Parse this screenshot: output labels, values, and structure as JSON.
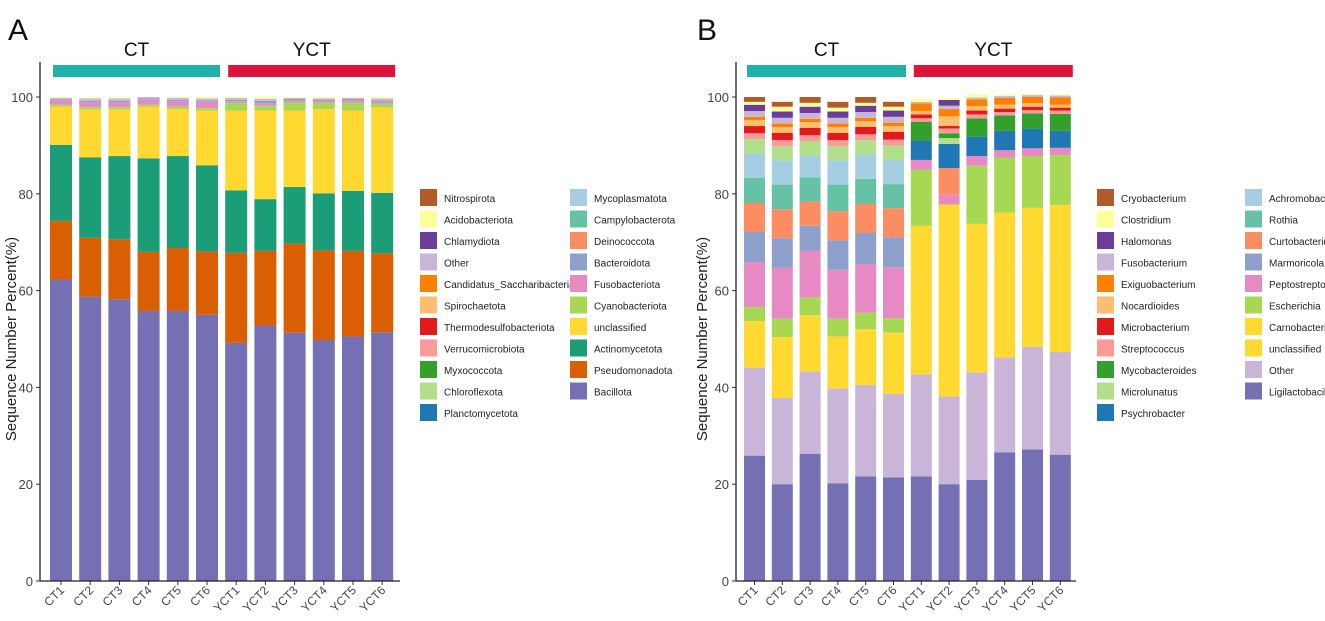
{
  "colors": {
    "Nitrospirota": "#b35a2a",
    "Acidobacteriota": "#ffff99",
    "Chlamydiota": "#6a3d9a",
    "Other": "#c9b5d8",
    "Candidatus_Saccharibacteria": "#ff7f00",
    "Spirochaetota": "#fdbf6f",
    "Thermodesulfobacteriota": "#e31a1c",
    "Verrucomicrobiota": "#fb9a99",
    "Myxococcota": "#33a02c",
    "Chloroflexota": "#b2df8a",
    "Planctomycetota": "#1f78b4",
    "Mycoplasmatota": "#a6cee3",
    "Campylobacterota": "#66c2a5",
    "Deinococcota": "#fc8d62",
    "Bacteroidota": "#8da0cb",
    "Fusobacteriota": "#e78ac3",
    "Cyanobacteriota": "#a6d854",
    "unclassified": "#ffd92f",
    "Actinomycetota": "#1b9e77",
    "Pseudomonadota": "#d95f02",
    "Bacillota": "#7570b3",
    "Cryobacterium": "#b35a2a",
    "Clostridium": "#ffff99",
    "Halomonas": "#6a3d9a",
    "Fusobacterium": "#c9b5d8",
    "Exiguobacterium": "#ff7f00",
    "Nocardioides": "#fdbf6f",
    "Microbacterium": "#e31a1c",
    "Streptococcus": "#fb9a99",
    "Mycobacteroides": "#33a02c",
    "Microlunatus": "#b2df8a",
    "Psychrobacter": "#1f78b4",
    "Achromobacter": "#a6cee3",
    "Rothia": "#66c2a5",
    "Curtobacterium": "#fc8d62",
    "Marmoricola": "#8da0cb",
    "Peptostreptococcus": "#e78ac3",
    "Escherichia": "#a6d854",
    "Carnobacterium": "#ffd92f",
    "Ligilactobacillus": "#7570b3"
  },
  "group_colors": {
    "CT": "#20b2aa",
    "YCT": "#dc143c"
  },
  "chart_data": [
    {
      "type": "bar",
      "stacked": true,
      "panel_label": "A",
      "ylabel": "Sequence Number Percent(%)",
      "ylim": [
        0,
        100
      ],
      "yticks": [
        0,
        20,
        40,
        60,
        80,
        100
      ],
      "categories": [
        "CT1",
        "CT2",
        "CT3",
        "CT4",
        "CT5",
        "CT6",
        "YCT1",
        "YCT2",
        "YCT3",
        "YCT4",
        "YCT5",
        "YCT6"
      ],
      "groups": [
        {
          "name": "CT",
          "members": [
            "CT1",
            "CT2",
            "CT3",
            "CT4",
            "CT5",
            "CT6"
          ]
        },
        {
          "name": "YCT",
          "members": [
            "YCT1",
            "YCT2",
            "YCT3",
            "YCT4",
            "YCT5",
            "YCT6"
          ]
        }
      ],
      "legend_columns": [
        [
          "Nitrospirota",
          "Acidobacteriota",
          "Chlamydiota",
          "Other",
          "Candidatus_Saccharibacteria",
          "Spirochaetota",
          "Thermodesulfobacteriota",
          "Verrucomicrobiota",
          "Myxococcota",
          "Chloroflexota",
          "Planctomycetota"
        ],
        [
          "Mycoplasmatota",
          "Campylobacterota",
          "Deinococcota",
          "Bacteroidota",
          "Fusobacteriota",
          "Cyanobacteriota",
          "unclassified",
          "Actinomycetota",
          "Pseudomonadota",
          "Bacillota"
        ]
      ],
      "series": [
        {
          "name": "Bacillota",
          "values": [
            62.3,
            58.7,
            58.2,
            55.8,
            55.8,
            55.0,
            49.2,
            52.8,
            51.3,
            49.8,
            50.5,
            51.4
          ]
        },
        {
          "name": "Pseudomonadota",
          "values": [
            12.1,
            12.2,
            12.4,
            12.2,
            13.0,
            13.1,
            18.6,
            15.4,
            18.4,
            18.5,
            17.7,
            16.3
          ]
        },
        {
          "name": "Actinomycetota",
          "values": [
            15.7,
            16.6,
            17.2,
            19.3,
            19.0,
            17.8,
            12.9,
            10.7,
            11.7,
            11.8,
            12.4,
            12.5
          ]
        },
        {
          "name": "unclassified",
          "values": [
            7.9,
            9.9,
            9.6,
            10.7,
            9.7,
            11.3,
            16.5,
            18.3,
            15.8,
            17.4,
            16.6,
            17.6
          ]
        },
        {
          "name": "Cyanobacteriota",
          "values": [
            0.4,
            0.5,
            0.5,
            0.4,
            0.5,
            0.5,
            1.6,
            1.0,
            1.7,
            1.3,
            1.6,
            0.8
          ]
        },
        {
          "name": "Fusobacteriota",
          "values": [
            0.9,
            1.0,
            1.0,
            1.1,
            1.1,
            1.3,
            0.3,
            0.5,
            0.4,
            0.4,
            0.5,
            0.4
          ]
        },
        {
          "name": "Bacteroidota",
          "values": [
            0.2,
            0.3,
            0.3,
            0.2,
            0.3,
            0.3,
            0.3,
            0.5,
            0.3,
            0.3,
            0.3,
            0.3
          ]
        },
        {
          "name": "Other",
          "values": [
            0.3,
            0.5,
            0.5,
            0.3,
            0.4,
            0.4,
            0.4,
            0.4,
            0.2,
            0.2,
            0.2,
            0.4
          ]
        },
        {
          "name": "Acidobacteriota",
          "values": [
            0.2,
            0.3,
            0.3,
            0.0,
            0.2,
            0.3,
            0.2,
            0.4,
            0.2,
            0.3,
            0.2,
            0.3
          ]
        }
      ]
    },
    {
      "type": "bar",
      "stacked": true,
      "panel_label": "B",
      "ylabel": "Sequence Number Percent(%)",
      "ylim": [
        0,
        100
      ],
      "yticks": [
        0,
        20,
        40,
        60,
        80,
        100
      ],
      "categories": [
        "CT1",
        "CT2",
        "CT3",
        "CT4",
        "CT5",
        "CT6",
        "YCT1",
        "YCT2",
        "YCT3",
        "YCT4",
        "YCT5",
        "YCT6"
      ],
      "groups": [
        {
          "name": "CT",
          "members": [
            "CT1",
            "CT2",
            "CT3",
            "CT4",
            "CT5",
            "CT6"
          ]
        },
        {
          "name": "YCT",
          "members": [
            "YCT1",
            "YCT2",
            "YCT3",
            "YCT4",
            "YCT5",
            "YCT6"
          ]
        }
      ],
      "legend_columns": [
        [
          "Cryobacterium",
          "Clostridium",
          "Halomonas",
          "Fusobacterium",
          "Exiguobacterium",
          "Nocardioides",
          "Microbacterium",
          "Streptococcus",
          "Mycobacteroides",
          "Microlunatus",
          "Psychrobacter"
        ],
        [
          "Achromobacter",
          "Rothia",
          "Curtobacterium",
          "Marmoricola",
          "Peptostreptococcus",
          "Escherichia",
          "Carnobacterium",
          "unclassified",
          "Other",
          "Ligilactobacillus"
        ]
      ],
      "series": [
        {
          "name": "Ligilactobacillus",
          "values": [
            25.9,
            20.0,
            26.3,
            20.2,
            21.6,
            21.4,
            21.6,
            20.0,
            20.9,
            26.6,
            27.2,
            26.1
          ]
        },
        {
          "name": "Other",
          "values": [
            18.2,
            17.8,
            17.0,
            19.6,
            18.9,
            17.3,
            21.1,
            18.1,
            22.2,
            19.6,
            21.2,
            21.2
          ]
        },
        {
          "name": "unclassified",
          "values": [
            9.4,
            12.3,
            11.4,
            10.5,
            11.3,
            12.4,
            19.0,
            19.2,
            18.4,
            18.9,
            17.9,
            19.3
          ]
        },
        {
          "name": "Carnobacterium",
          "values": [
            0.2,
            0.3,
            0.2,
            0.2,
            0.2,
            0.2,
            11.7,
            20.5,
            12.3,
            11.0,
            10.8,
            11.1
          ]
        },
        {
          "name": "Escherichia",
          "values": [
            2.9,
            3.8,
            3.7,
            3.7,
            3.4,
            3.0,
            11.6,
            0.0,
            12.0,
            11.4,
            10.7,
            10.3
          ]
        },
        {
          "name": "Peptostreptococcus",
          "values": [
            9.3,
            10.5,
            9.6,
            10.1,
            10.1,
            10.5,
            2.0,
            2.0,
            2.0,
            1.5,
            1.6,
            1.5
          ]
        },
        {
          "name": "Marmoricola",
          "values": [
            6.2,
            6.1,
            5.2,
            6.1,
            6.4,
            6.2,
            0.0,
            0.0,
            0.0,
            0.0,
            0.0,
            0.0
          ]
        },
        {
          "name": "Curtobacterium",
          "values": [
            6.0,
            6.0,
            5.0,
            6.0,
            6.0,
            6.0,
            0.0,
            5.5,
            0.0,
            0.0,
            0.0,
            0.0
          ]
        },
        {
          "name": "Rothia",
          "values": [
            5.2,
            5.1,
            5.0,
            5.5,
            5.2,
            5.0,
            0.0,
            0.0,
            0.0,
            0.0,
            0.0,
            0.0
          ]
        },
        {
          "name": "Achromobacter",
          "values": [
            5.0,
            5.0,
            4.5,
            5.0,
            5.0,
            5.0,
            0.0,
            0.0,
            0.0,
            0.0,
            0.0,
            0.0
          ]
        },
        {
          "name": "Psychrobacter",
          "values": [
            0.0,
            0.0,
            0.0,
            0.0,
            0.0,
            0.0,
            4.0,
            5.0,
            4.0,
            4.0,
            4.0,
            3.5
          ]
        },
        {
          "name": "Microlunatus",
          "values": [
            3.0,
            3.0,
            3.0,
            3.0,
            3.0,
            3.0,
            0.0,
            1.2,
            0.0,
            0.0,
            0.0,
            0.0
          ]
        },
        {
          "name": "Mycobacteroides",
          "values": [
            0.0,
            0.0,
            0.0,
            0.0,
            0.0,
            0.0,
            3.9,
            1.0,
            3.8,
            3.2,
            3.2,
            3.5
          ]
        },
        {
          "name": "Streptococcus",
          "values": [
            1.2,
            1.2,
            1.2,
            1.2,
            1.2,
            1.2,
            0.7,
            1.0,
            0.8,
            0.7,
            0.7,
            0.7
          ]
        },
        {
          "name": "Microbacterium",
          "values": [
            1.5,
            1.5,
            1.5,
            1.5,
            1.5,
            1.6,
            0.8,
            0.5,
            0.8,
            0.7,
            0.7,
            0.6
          ]
        },
        {
          "name": "Nocardioides",
          "values": [
            1.2,
            1.2,
            1.2,
            1.2,
            1.2,
            1.2,
            0.7,
            2.0,
            0.9,
            0.8,
            0.7,
            0.6
          ]
        },
        {
          "name": "Exiguobacterium",
          "values": [
            0.7,
            0.7,
            0.7,
            0.7,
            0.7,
            0.7,
            1.6,
            1.5,
            1.4,
            1.4,
            1.3,
            1.5
          ]
        },
        {
          "name": "Fusobacterium",
          "values": [
            1.2,
            1.2,
            1.2,
            1.2,
            1.2,
            1.2,
            0.3,
            0.7,
            0.4,
            0.4,
            0.4,
            0.4
          ]
        },
        {
          "name": "Halomonas",
          "values": [
            1.3,
            1.3,
            1.3,
            1.3,
            1.3,
            1.3,
            0.0,
            1.2,
            0.0,
            0.0,
            0.0,
            0.0
          ]
        },
        {
          "name": "Clostridium",
          "values": [
            0.6,
            1.0,
            0.8,
            0.8,
            0.6,
            0.8,
            0.6,
            0.4,
            0.7,
            0.3,
            0.3,
            0.2
          ]
        },
        {
          "name": "Cryobacterium",
          "values": [
            1.0,
            1.0,
            1.2,
            1.2,
            1.2,
            1.0,
            0.0,
            0.0,
            0.0,
            0.0,
            0.0,
            0.0
          ]
        }
      ]
    }
  ]
}
